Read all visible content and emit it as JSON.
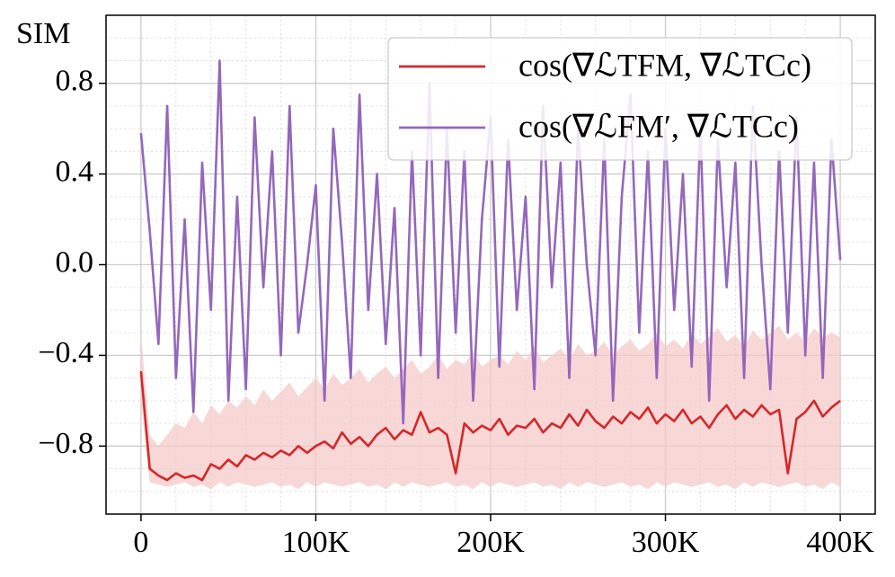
{
  "chart_data": {
    "type": "line",
    "ylabel": "SIM",
    "x": [
      0,
      5000,
      10000,
      15000,
      20000,
      25000,
      30000,
      35000,
      40000,
      45000,
      50000,
      55000,
      60000,
      65000,
      70000,
      75000,
      80000,
      85000,
      90000,
      95000,
      100000,
      105000,
      110000,
      115000,
      120000,
      125000,
      130000,
      135000,
      140000,
      145000,
      150000,
      155000,
      160000,
      165000,
      170000,
      175000,
      180000,
      185000,
      190000,
      195000,
      200000,
      205000,
      210000,
      215000,
      220000,
      225000,
      230000,
      235000,
      240000,
      245000,
      250000,
      255000,
      260000,
      265000,
      270000,
      275000,
      280000,
      285000,
      290000,
      295000,
      300000,
      305000,
      310000,
      315000,
      320000,
      325000,
      330000,
      335000,
      340000,
      345000,
      350000,
      355000,
      360000,
      365000,
      370000,
      375000,
      380000,
      385000,
      390000,
      395000,
      400000
    ],
    "series": [
      {
        "name": "cos(∇ℒTFM, ∇ℒTCc)",
        "color": "#d62728",
        "band_color": "#f6c9c9",
        "values": [
          -0.47,
          -0.9,
          -0.93,
          -0.95,
          -0.92,
          -0.94,
          -0.93,
          -0.95,
          -0.88,
          -0.9,
          -0.86,
          -0.89,
          -0.84,
          -0.86,
          -0.83,
          -0.85,
          -0.82,
          -0.84,
          -0.8,
          -0.83,
          -0.8,
          -0.78,
          -0.81,
          -0.74,
          -0.79,
          -0.76,
          -0.8,
          -0.75,
          -0.72,
          -0.77,
          -0.73,
          -0.75,
          -0.65,
          -0.74,
          -0.72,
          -0.75,
          -0.92,
          -0.7,
          -0.74,
          -0.71,
          -0.73,
          -0.68,
          -0.75,
          -0.71,
          -0.72,
          -0.68,
          -0.74,
          -0.7,
          -0.72,
          -0.66,
          -0.71,
          -0.64,
          -0.69,
          -0.72,
          -0.67,
          -0.7,
          -0.65,
          -0.68,
          -0.63,
          -0.7,
          -0.66,
          -0.69,
          -0.64,
          -0.7,
          -0.67,
          -0.72,
          -0.66,
          -0.62,
          -0.68,
          -0.64,
          -0.67,
          -0.62,
          -0.66,
          -0.64,
          -0.92,
          -0.68,
          -0.65,
          -0.6,
          -0.67,
          -0.63,
          -0.6
        ],
        "band_lower": [
          -0.6,
          -0.96,
          -0.97,
          -0.98,
          -0.97,
          -0.96,
          -0.98,
          -0.97,
          -0.99,
          -0.96,
          -0.98,
          -0.96,
          -0.97,
          -0.98,
          -0.97,
          -0.96,
          -0.98,
          -0.97,
          -0.99,
          -0.96,
          -0.98,
          -0.96,
          -0.97,
          -0.98,
          -0.97,
          -0.96,
          -0.98,
          -0.97,
          -0.99,
          -0.96,
          -0.98,
          -0.96,
          -0.97,
          -0.98,
          -0.97,
          -0.96,
          -0.98,
          -0.97,
          -0.99,
          -0.96,
          -0.98,
          -0.96,
          -0.97,
          -0.98,
          -0.97,
          -0.96,
          -0.98,
          -0.97,
          -0.99,
          -0.96,
          -0.98,
          -0.96,
          -0.97,
          -0.98,
          -0.97,
          -0.96,
          -0.98,
          -0.97,
          -0.99,
          -0.96,
          -0.98,
          -0.96,
          -0.97,
          -0.98,
          -0.97,
          -0.96,
          -0.98,
          -0.97,
          -0.99,
          -0.96,
          -0.98,
          -0.96,
          -0.97,
          -0.98,
          -0.97,
          -0.96,
          -0.98,
          -0.97,
          -0.99,
          -0.96,
          -0.98
        ],
        "band_upper": [
          -0.3,
          -0.75,
          -0.8,
          -0.75,
          -0.7,
          -0.72,
          -0.65,
          -0.7,
          -0.62,
          -0.66,
          -0.6,
          -0.63,
          -0.58,
          -0.62,
          -0.55,
          -0.6,
          -0.56,
          -0.52,
          -0.58,
          -0.54,
          -0.5,
          -0.55,
          -0.48,
          -0.53,
          -0.5,
          -0.46,
          -0.52,
          -0.48,
          -0.45,
          -0.5,
          -0.46,
          -0.42,
          -0.48,
          -0.45,
          -0.4,
          -0.46,
          -0.42,
          -0.44,
          -0.38,
          -0.45,
          -0.42,
          -0.4,
          -0.44,
          -0.38,
          -0.42,
          -0.36,
          -0.43,
          -0.4,
          -0.37,
          -0.42,
          -0.35,
          -0.4,
          -0.38,
          -0.34,
          -0.4,
          -0.36,
          -0.33,
          -0.38,
          -0.35,
          -0.3,
          -0.36,
          -0.33,
          -0.37,
          -0.3,
          -0.35,
          -0.32,
          -0.28,
          -0.34,
          -0.31,
          -0.36,
          -0.29,
          -0.33,
          -0.3,
          -0.27,
          -0.33,
          -0.3,
          -0.34,
          -0.28,
          -0.32,
          -0.3,
          -0.32
        ]
      },
      {
        "name": "cos(∇ℒFM′, ∇ℒTCc)",
        "color": "#9467bd",
        "values": [
          0.58,
          0.15,
          -0.35,
          0.7,
          -0.5,
          0.2,
          -0.65,
          0.45,
          -0.2,
          0.9,
          -0.6,
          0.3,
          -0.55,
          0.65,
          -0.1,
          0.5,
          -0.4,
          0.7,
          -0.3,
          0.0,
          0.35,
          -0.6,
          0.6,
          0.1,
          -0.5,
          0.75,
          -0.2,
          0.4,
          -0.35,
          0.25,
          -0.7,
          0.5,
          -0.4,
          0.8,
          -0.5,
          0.6,
          -0.3,
          0.5,
          -0.6,
          0.2,
          0.65,
          -0.45,
          0.55,
          -0.2,
          0.3,
          -0.55,
          0.7,
          -0.1,
          0.45,
          -0.5,
          0.6,
          0.0,
          -0.4,
          0.55,
          -0.6,
          0.3,
          0.75,
          -0.3,
          0.5,
          -0.5,
          0.6,
          -0.2,
          0.4,
          -0.45,
          0.6,
          -0.6,
          0.55,
          -0.1,
          0.45,
          -0.5,
          0.7,
          0.0,
          -0.55,
          0.5,
          -0.3,
          0.65,
          -0.4,
          0.45,
          -0.5,
          0.55,
          0.02
        ]
      }
    ],
    "xlim": [
      -20000,
      420000
    ],
    "ylim": [
      -1.1,
      1.1
    ],
    "xticks": [
      0,
      {
        "value": 100000,
        "label": "100K"
      },
      {
        "value": 200000,
        "label": "200K"
      },
      {
        "value": 300000,
        "label": "300K"
      },
      {
        "value": 400000,
        "label": "400K"
      }
    ],
    "yticks": [
      {
        "value": -0.8,
        "label": "−0.8"
      },
      {
        "value": -0.4,
        "label": "−0.4"
      },
      {
        "value": 0,
        "label": "0.0"
      },
      0.4,
      0.8
    ],
    "grid": true,
    "minor_grid": true,
    "legend": "upper right"
  }
}
